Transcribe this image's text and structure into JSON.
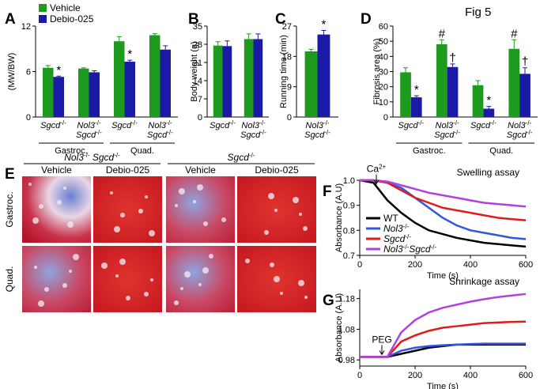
{
  "figure_label": "Fig 5",
  "chart_data": [
    {
      "panel": "A",
      "type": "bar",
      "ylabel": "(MW/BW)",
      "categories": [
        "Sgcd-/-",
        "Nol3-/- Sgcd-/-",
        "Sgcd-/-",
        "Nol3-/- Sgcd-/-"
      ],
      "category_groups": [
        "Gastroc.",
        "Gastroc.",
        "Quad.",
        "Quad."
      ],
      "series": [
        {
          "name": "Vehicle",
          "color": "#1e9a1e",
          "values": [
            6.5,
            6.4,
            10.0,
            10.8
          ],
          "errors": [
            0.3,
            0.1,
            0.6,
            0.2
          ]
        },
        {
          "name": "Debio-025",
          "color": "#1a1aa6",
          "values": [
            5.3,
            5.9,
            7.3,
            8.9
          ],
          "errors": [
            0.1,
            0.2,
            0.2,
            0.5
          ],
          "markers": [
            "*",
            null,
            "*",
            null
          ]
        }
      ],
      "ylim": [
        0,
        12
      ],
      "yticks": [
        0,
        6,
        12
      ],
      "legend": "upper left"
    },
    {
      "panel": "B",
      "type": "bar",
      "ylabel": "Body weight (g)",
      "categories": [
        "Sgcd-/-",
        "Nol3-/- Sgcd-/-"
      ],
      "series": [
        {
          "color": "#1e9a1e",
          "values": [
            27.5,
            30.0
          ],
          "errors": [
            1.5,
            2.0
          ]
        },
        {
          "color": "#1a1aa6",
          "values": [
            27.3,
            30.0
          ],
          "errors": [
            2.0,
            2.0
          ]
        }
      ],
      "ylim": [
        0,
        35
      ],
      "yticks": [
        0,
        7,
        14,
        21,
        28,
        35
      ]
    },
    {
      "panel": "C",
      "type": "bar",
      "ylabel": "Running time (min)",
      "categories": [
        "Nol3-/- Sgcd-/-"
      ],
      "series": [
        {
          "color": "#1e9a1e",
          "values": [
            19.5
          ],
          "errors": [
            0.6
          ]
        },
        {
          "color": "#1a1aa6",
          "values": [
            24.5
          ],
          "errors": [
            1.2
          ],
          "markers": [
            "*"
          ]
        }
      ],
      "ylim": [
        0,
        27
      ],
      "yticks": [
        0,
        9,
        18,
        27
      ]
    },
    {
      "panel": "D",
      "type": "bar",
      "ylabel": "Fibrosis area (%)",
      "categories": [
        "Sgcd-/-",
        "Nol3-/- Sgcd-/-",
        "Sgcd-/-",
        "Nol3-/- Sgcd-/-"
      ],
      "category_groups": [
        "Gastroc.",
        "Gastroc.",
        "Quad.",
        "Quad."
      ],
      "series": [
        {
          "color": "#1e9a1e",
          "values": [
            29.5,
            48,
            21,
            45
          ],
          "errors": [
            3,
            3,
            3,
            6
          ],
          "markers": [
            null,
            "#",
            null,
            "#"
          ]
        },
        {
          "color": "#1a1aa6",
          "values": [
            13,
            33,
            5.5,
            28.5
          ],
          "errors": [
            1,
            2,
            1.5,
            4
          ],
          "markers": [
            "*",
            "†",
            "*",
            "†"
          ]
        }
      ],
      "ylim": [
        0,
        60
      ],
      "yticks": [
        0,
        10,
        20,
        30,
        40,
        50,
        60
      ]
    },
    {
      "panel": "F",
      "type": "line",
      "title": "Swelling assay",
      "xlabel": "Time (s)",
      "ylabel": "Absorbance (A.U)",
      "x": [
        0,
        50,
        100,
        150,
        200,
        250,
        300,
        350,
        400,
        450,
        500,
        550,
        600
      ],
      "xlim": [
        0,
        600
      ],
      "xticks": [
        0,
        200,
        400,
        600
      ],
      "ylim": [
        0.7,
        1.0
      ],
      "yticks": [
        0.7,
        0.8,
        0.9,
        {
          "value": 1,
          "label": "1.0"
        }
      ],
      "series": [
        {
          "name": "WT",
          "color": "#000000",
          "values": [
            1.0,
            0.99,
            0.92,
            0.87,
            0.83,
            0.8,
            0.785,
            0.77,
            0.76,
            0.75,
            0.745,
            0.74,
            0.735
          ]
        },
        {
          "name": "Nol3-/-",
          "color": "#3355dd",
          "values": [
            1.0,
            1.0,
            0.99,
            0.97,
            0.93,
            0.89,
            0.85,
            0.82,
            0.8,
            0.79,
            0.78,
            0.77,
            0.765
          ]
        },
        {
          "name": "Sgcd-/-",
          "color": "#e01b1b",
          "values": [
            1.0,
            1.0,
            0.99,
            0.96,
            0.93,
            0.91,
            0.89,
            0.88,
            0.87,
            0.86,
            0.85,
            0.845,
            0.84
          ]
        },
        {
          "name": "Nol3-/-Sgcd-/-",
          "color": "#b040e0",
          "values": [
            1.0,
            1.0,
            0.995,
            0.98,
            0.965,
            0.95,
            0.94,
            0.93,
            0.92,
            0.91,
            0.905,
            0.9,
            0.895
          ]
        }
      ],
      "legend": "lower left",
      "annotations": [
        {
          "text": "Ca2+",
          "x": 60
        }
      ]
    },
    {
      "panel": "G",
      "type": "line",
      "title": "Shrinkage assay",
      "xlabel": "Time (s)",
      "ylabel": "Absorbance (A.U)",
      "x": [
        0,
        50,
        100,
        150,
        200,
        250,
        300,
        350,
        400,
        450,
        500,
        550,
        600
      ],
      "xlim": [
        0,
        600
      ],
      "xticks": [
        0,
        200,
        400,
        600
      ],
      "ylim": [
        0.96,
        1.21
      ],
      "yticks": [
        0.98,
        1.08,
        1.18
      ],
      "series": [
        {
          "color": "#000000",
          "values": [
            0.99,
            0.99,
            0.99,
            1.0,
            1.01,
            1.02,
            1.025,
            1.03,
            1.03,
            1.03,
            1.03,
            1.03,
            1.03
          ]
        },
        {
          "color": "#3355dd",
          "values": [
            0.99,
            0.99,
            0.99,
            1.01,
            1.02,
            1.025,
            1.028,
            1.03,
            1.032,
            1.033,
            1.033,
            1.033,
            1.033
          ]
        },
        {
          "color": "#e01b1b",
          "values": [
            0.99,
            0.99,
            0.99,
            1.04,
            1.06,
            1.075,
            1.085,
            1.09,
            1.095,
            1.1,
            1.102,
            1.104,
            1.105
          ]
        },
        {
          "color": "#b040e0",
          "values": [
            0.99,
            0.99,
            0.99,
            1.07,
            1.11,
            1.135,
            1.15,
            1.16,
            1.17,
            1.178,
            1.185,
            1.19,
            1.195
          ]
        }
      ],
      "annotations": [
        {
          "text": "PEG",
          "x": 80
        }
      ]
    }
  ],
  "histology": {
    "panel": "E",
    "genotypes": [
      "Nol3-/- Sgcd-/-",
      "Sgcd-/-"
    ],
    "columns": [
      "Vehicle",
      "Debio-025",
      "Vehicle",
      "Debio-025"
    ],
    "rows": [
      "Gastroc.",
      "Quad."
    ]
  }
}
